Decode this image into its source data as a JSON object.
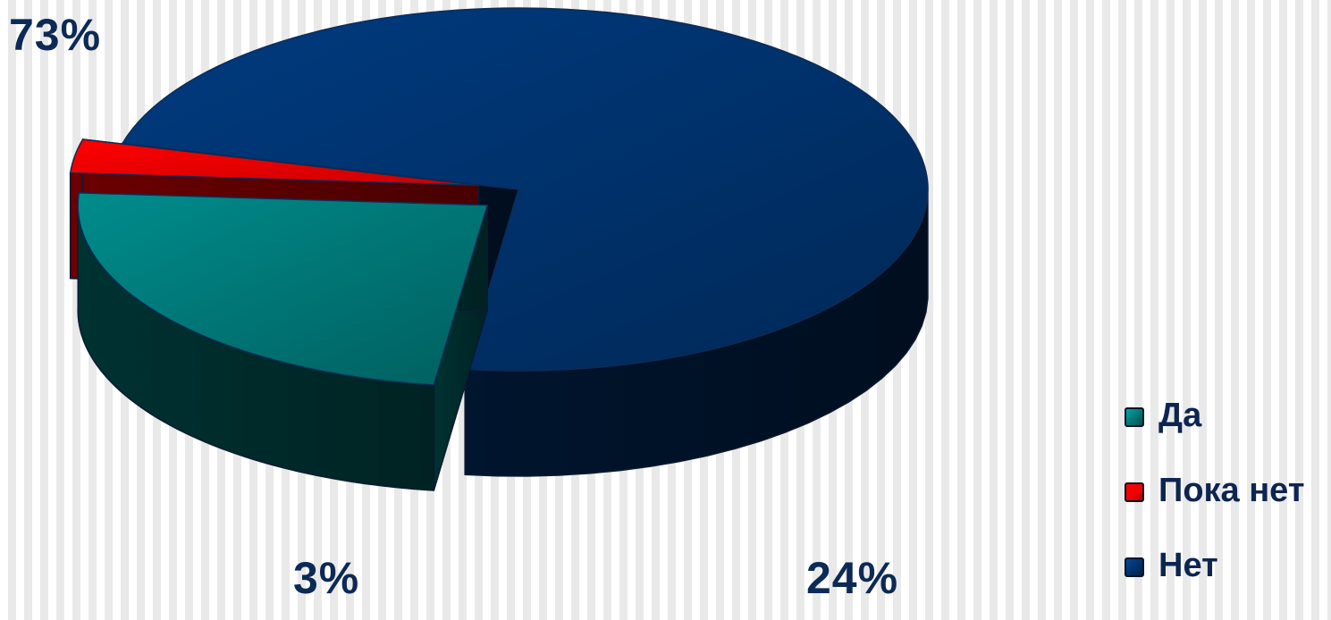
{
  "chart_data": {
    "type": "pie",
    "style": "3d-exploded",
    "categories": [
      "Да",
      "Пока нет",
      "Нет"
    ],
    "values": [
      24,
      3,
      73
    ],
    "labels": [
      "24%",
      "3%",
      "73%"
    ],
    "colors": [
      "#007070",
      "#ee0000",
      "#002f66"
    ],
    "legend_position": "right",
    "grid": false
  }
}
